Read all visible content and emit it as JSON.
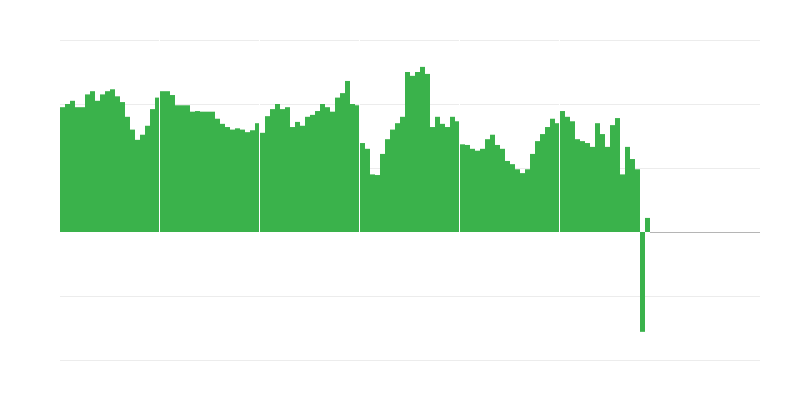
{
  "chart_data": {
    "type": "bar",
    "title": "",
    "xlabel": "",
    "ylabel": "",
    "ylim": [
      -2,
      3
    ],
    "y_gridlines": [
      -2,
      -1,
      0,
      1,
      2,
      3
    ],
    "grid": true,
    "colors": {
      "bar": "#3ab24b",
      "grid": "#ececec",
      "zero_line": "#b5b5b5",
      "separator": "#ffffff"
    },
    "values": [
      1.95,
      2.0,
      2.05,
      1.95,
      1.95,
      2.15,
      2.2,
      2.05,
      2.15,
      2.2,
      2.23,
      2.12,
      2.03,
      1.8,
      1.6,
      1.44,
      1.52,
      1.66,
      1.92,
      2.1,
      2.2,
      2.2,
      2.14,
      1.98,
      1.98,
      1.98,
      1.88,
      1.89,
      1.88,
      1.88,
      1.88,
      1.77,
      1.69,
      1.64,
      1.6,
      1.62,
      1.6,
      1.56,
      1.59,
      1.7,
      1.55,
      1.81,
      1.92,
      2.0,
      1.92,
      1.95,
      1.64,
      1.72,
      1.66,
      1.8,
      1.83,
      1.89,
      2.0,
      1.95,
      1.88,
      2.1,
      2.17,
      2.36,
      2.0,
      1.98,
      1.39,
      1.3,
      0.9,
      0.89,
      1.22,
      1.45,
      1.6,
      1.7,
      1.8,
      2.5,
      2.44,
      2.5,
      2.58,
      2.47,
      1.64,
      1.8,
      1.69,
      1.64,
      1.8,
      1.73,
      1.37,
      1.36,
      1.3,
      1.27,
      1.3,
      1.45,
      1.52,
      1.36,
      1.3,
      1.11,
      1.06,
      0.98,
      0.92,
      0.98,
      1.22,
      1.42,
      1.53,
      1.64,
      1.77,
      1.7,
      1.89,
      1.8,
      1.73,
      1.45,
      1.42,
      1.39,
      1.33,
      1.7,
      1.53,
      1.33,
      1.67,
      1.78,
      0.9,
      1.33,
      1.14,
      0.98,
      -1.56,
      0.22
    ]
  }
}
